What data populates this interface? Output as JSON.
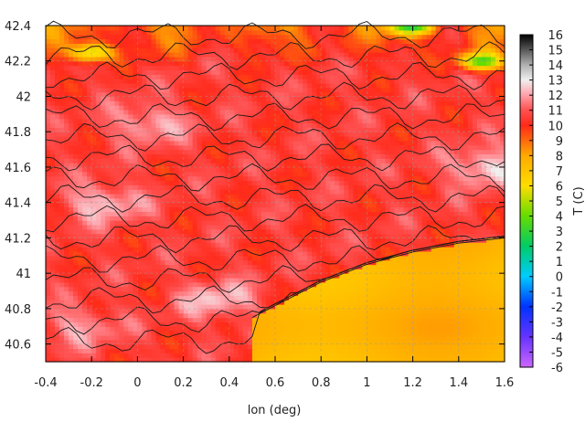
{
  "chart_data": {
    "type": "heatmap",
    "title": "",
    "xlabel": "lon (deg)",
    "ylabel": "",
    "xlim": [
      -0.4,
      1.6
    ],
    "ylim": [
      40.5,
      42.4
    ],
    "x_ticks": [
      "-0.4",
      "-0.2",
      "0",
      "0.2",
      "0.4",
      "0.6",
      "0.8",
      "1",
      "1.2",
      "1.4",
      "1.6"
    ],
    "y_ticks": [
      "40.6",
      "40.8",
      "41",
      "41.2",
      "41.4",
      "41.6",
      "41.8",
      "42",
      "42.2",
      "42.4"
    ],
    "grid": true,
    "colorbar": {
      "label": "T (C)",
      "range": [
        -6,
        16
      ],
      "ticks": [
        "16",
        "15",
        "14",
        "13",
        "12",
        "11",
        "10",
        "9",
        "8",
        "7",
        "6",
        "5",
        "4",
        "3",
        "2",
        "1",
        "0",
        "-1",
        "-2",
        "-3",
        "-4",
        "-5",
        "-6"
      ],
      "stops": [
        {
          "value": -6,
          "color": "#cc66ff"
        },
        {
          "value": -4,
          "color": "#6633ff"
        },
        {
          "value": -2,
          "color": "#0033ff"
        },
        {
          "value": 0,
          "color": "#00ccff"
        },
        {
          "value": 2,
          "color": "#00cc66"
        },
        {
          "value": 4,
          "color": "#66dd00"
        },
        {
          "value": 6,
          "color": "#ffdd00"
        },
        {
          "value": 8,
          "color": "#ffaa00"
        },
        {
          "value": 10,
          "color": "#ff2a1a"
        },
        {
          "value": 11,
          "color": "#ff5050"
        },
        {
          "value": 12,
          "color": "#ffa0a8"
        },
        {
          "value": 13,
          "color": "#f0f0f0"
        },
        {
          "value": 14,
          "color": "#b0b0b0"
        },
        {
          "value": 16,
          "color": "#000000"
        }
      ]
    },
    "field_summary": {
      "coast_lon": [
        0.5,
        0.8,
        1.0,
        1.2,
        1.4,
        1.6
      ],
      "coast_lat": [
        40.75,
        40.95,
        41.05,
        41.12,
        41.17,
        41.2
      ],
      "sea_temperature_c": 7.5,
      "inland_temperature_c": 10.5,
      "warm_patches": [
        {
          "lon": -0.15,
          "lat": 41.4,
          "t": 12.5
        },
        {
          "lon": 0.05,
          "lat": 41.85,
          "t": 12.3
        },
        {
          "lon": 0.35,
          "lat": 40.85,
          "t": 12.4
        },
        {
          "lon": 1.52,
          "lat": 41.6,
          "t": 12.8
        },
        {
          "lon": -0.25,
          "lat": 40.7,
          "t": 12.0
        }
      ],
      "cold_patches": [
        {
          "lon": 1.2,
          "lat": 42.4,
          "t": 4.0
        },
        {
          "lon": 1.5,
          "lat": 42.2,
          "t": 3.5
        },
        {
          "lon": -0.2,
          "lat": 42.25,
          "t": 5.0
        }
      ]
    }
  }
}
